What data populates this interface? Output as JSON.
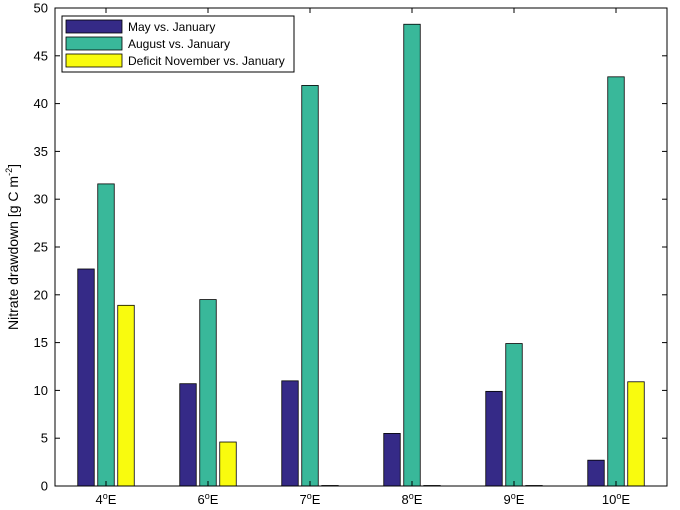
{
  "chart_data": {
    "type": "bar",
    "title": "",
    "xlabel": "",
    "ylabel": "Nitrate drawdown [g C m",
    "ylabel_sup": "-2",
    "ylabel_end": "]",
    "ylim": [
      0,
      50
    ],
    "yticks": [
      0,
      5,
      10,
      15,
      20,
      25,
      30,
      35,
      40,
      45,
      50
    ],
    "categories": [
      {
        "num": "4",
        "deg": "o",
        "unit": "E"
      },
      {
        "num": "6",
        "deg": "o",
        "unit": "E"
      },
      {
        "num": "7",
        "deg": "o",
        "unit": "E"
      },
      {
        "num": "8",
        "deg": "o",
        "unit": "E"
      },
      {
        "num": "9",
        "deg": "o",
        "unit": "E"
      },
      {
        "num": "10",
        "deg": "o",
        "unit": "E"
      }
    ],
    "legend_position": "top-left",
    "series": [
      {
        "name": "May vs. January",
        "color": "#352a87",
        "values": [
          22.7,
          10.7,
          11.0,
          5.5,
          9.9,
          2.7
        ]
      },
      {
        "name": "August vs. January",
        "color": "#39b89a",
        "values": [
          31.6,
          19.5,
          41.9,
          48.3,
          14.9,
          42.8
        ]
      },
      {
        "name": "Deficit November vs. January",
        "color": "#f9fb0e",
        "values": [
          18.9,
          4.6,
          0,
          0,
          0,
          10.9
        ]
      }
    ]
  }
}
